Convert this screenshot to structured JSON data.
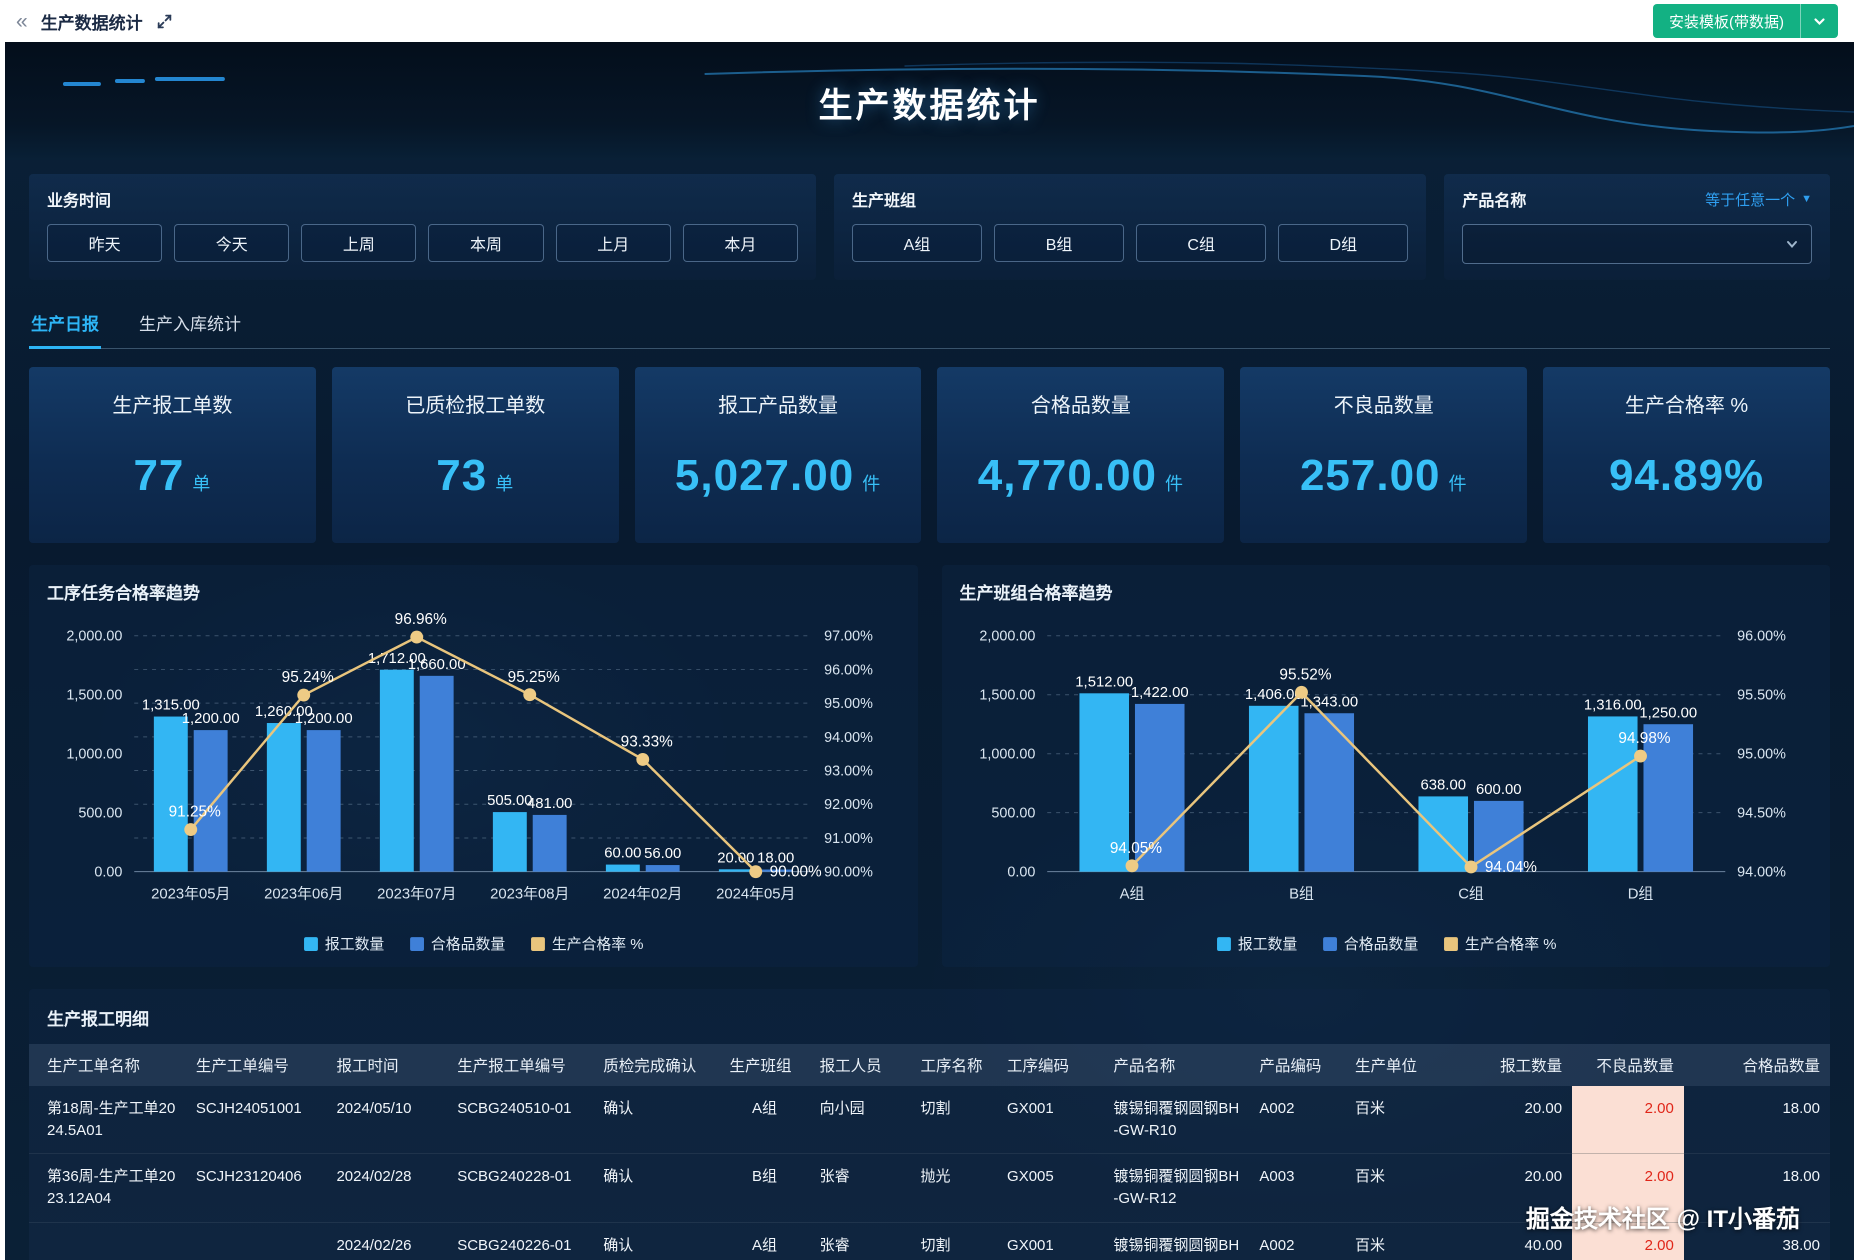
{
  "topbar": {
    "collapse_icon": "«",
    "title": "生产数据统计",
    "install_button": "安装模板(带数据)"
  },
  "banner": {
    "title": "生产数据统计"
  },
  "filters": {
    "time": {
      "label": "业务时间",
      "options": [
        "昨天",
        "今天",
        "上周",
        "本周",
        "上月",
        "本月"
      ]
    },
    "team": {
      "label": "生产班组",
      "options": [
        "A组",
        "B组",
        "C组",
        "D组"
      ]
    },
    "product": {
      "label": "产品名称",
      "operator": "等于任意一个"
    }
  },
  "tabs": [
    {
      "label": "生产日报",
      "active": true
    },
    {
      "label": "生产入库统计",
      "active": false
    }
  ],
  "kpis": [
    {
      "title": "生产报工单数",
      "value": "77",
      "unit": "单"
    },
    {
      "title": "已质检报工单数",
      "value": "73",
      "unit": "单"
    },
    {
      "title": "报工产品数量",
      "value": "5,027.00",
      "unit": "件"
    },
    {
      "title": "合格品数量",
      "value": "4,770.00",
      "unit": "件"
    },
    {
      "title": "不良品数量",
      "value": "257.00",
      "unit": "件"
    },
    {
      "title": "生产合格率 %",
      "value": "94.89%",
      "unit": ""
    }
  ],
  "chart_data": [
    {
      "type": "bar+line",
      "title": "工序任务合格率趋势",
      "categories": [
        "2023年05月",
        "2023年06月",
        "2023年07月",
        "2023年08月",
        "2024年02月",
        "2024年05月"
      ],
      "series": [
        {
          "name": "报工数量",
          "type": "bar",
          "color": "#33b6f3",
          "values": [
            1315,
            1260,
            1712,
            505,
            60,
            20
          ]
        },
        {
          "name": "合格品数量",
          "type": "bar",
          "color": "#3f80d8",
          "values": [
            1200,
            1200,
            1660,
            481,
            56,
            18
          ]
        },
        {
          "name": "生产合格率 %",
          "type": "line",
          "color": "#e9c57d",
          "values": [
            91.25,
            95.24,
            96.96,
            95.25,
            93.33,
            90.0
          ]
        }
      ],
      "bar_labels": [
        [
          "1,315.00",
          "1,260.00",
          "1,712.00",
          "505.00",
          "60.00",
          "20.00"
        ],
        [
          "1,200.00",
          "1,200.00",
          "1,660.00",
          "481.00",
          "56.00",
          "18.00"
        ]
      ],
      "line_labels": [
        "91.25%",
        "95.24%",
        "96.96%",
        "95.25%",
        "93.33%",
        "90.00%"
      ],
      "left_axis": {
        "min": 0,
        "max": 2000,
        "tick_labels": [
          "0.00",
          "500.00",
          "1,000.00",
          "1,500.00",
          "2,000.00"
        ]
      },
      "right_axis": {
        "min": 90,
        "max": 97,
        "tick_labels": [
          "90.00%",
          "91.00%",
          "92.00%",
          "93.00%",
          "94.00%",
          "95.00%",
          "96.00%",
          "97.00%"
        ]
      },
      "legend": [
        "报工数量",
        "合格品数量",
        "生产合格率 %"
      ],
      "grid": true,
      "legend_position": "bottom"
    },
    {
      "type": "bar+line",
      "title": "生产班组合格率趋势",
      "categories": [
        "A组",
        "B组",
        "C组",
        "D组"
      ],
      "series": [
        {
          "name": "报工数量",
          "type": "bar",
          "color": "#33b6f3",
          "values": [
            1512,
            1406,
            638,
            1316
          ]
        },
        {
          "name": "合格品数量",
          "type": "bar",
          "color": "#3f80d8",
          "values": [
            1422,
            1343,
            600,
            1250
          ]
        },
        {
          "name": "生产合格率 %",
          "type": "line",
          "color": "#e9c57d",
          "values": [
            94.05,
            95.52,
            94.04,
            94.98
          ]
        }
      ],
      "bar_labels": [
        [
          "1,512.00",
          "1,406.00",
          "638.00",
          "1,316.00"
        ],
        [
          "1,422.00",
          "1,343.00",
          "600.00",
          "1,250.00"
        ]
      ],
      "line_labels": [
        "94.05%",
        "95.52%",
        "94.04%",
        "94.98%"
      ],
      "left_axis": {
        "min": 0,
        "max": 2000,
        "tick_labels": [
          "0.00",
          "500.00",
          "1,000.00",
          "1,500.00",
          "2,000.00"
        ]
      },
      "right_axis": {
        "min": 94,
        "max": 96,
        "tick_labels": [
          "94.00%",
          "94.50%",
          "95.00%",
          "95.50%",
          "96.00%"
        ]
      },
      "legend": [
        "报工数量",
        "合格品数量",
        "生产合格率 %"
      ],
      "grid": true,
      "legend_position": "bottom"
    }
  ],
  "table": {
    "title": "生产报工明细",
    "columns": [
      "生产工单名称",
      "生产工单编号",
      "报工时间",
      "生产报工单编号",
      "质检完成确认",
      "生产班组",
      "报工人员",
      "工序名称",
      "工序编码",
      "产品名称",
      "产品编码",
      "生产单位",
      "报工数量",
      "不良品数量",
      "合格品数量"
    ],
    "rows": [
      [
        "第18周-生产工单2024.5A01",
        "SCJH24051001",
        "2024/05/10",
        "SCBG240510-01",
        "确认",
        "A组",
        "向小园",
        "切割",
        "GX001",
        "镀锡铜覆钢圆钢BH-GW-R10",
        "A002",
        "百米",
        "20.00",
        "2.00",
        "18.00"
      ],
      [
        "第36周-生产工单2023.12A04",
        "SCJH23120406",
        "2024/02/28",
        "SCBG240228-01",
        "确认",
        "B组",
        "张睿",
        "抛光",
        "GX005",
        "镀锡铜覆钢圆钢BH-GW-R12",
        "A003",
        "百米",
        "20.00",
        "2.00",
        "18.00"
      ],
      [
        "",
        "",
        "2024/02/26",
        "SCBG240226-01",
        "确认",
        "A组",
        "张睿",
        "切割",
        "GX001",
        "镀锡铜覆钢圆钢BH-GW-R10",
        "A002",
        "百米",
        "40.00",
        "2.00",
        "38.00"
      ],
      [
        "",
        "",
        "",
        "",
        "",
        "",
        "",
        "",
        "",
        "",
        "",
        "",
        "",
        "",
        ""
      ]
    ]
  },
  "watermark": "掘金技术社区 @ IT小番茄",
  "colors": {
    "accent_cyan": "#2db5f6",
    "kpi_value": "#38c0f7",
    "button_green": "#13b183",
    "bar_primary": "#33b6f3",
    "bar_secondary": "#3f80d8",
    "line_rate": "#e9c57d",
    "defect_cell_bg": "#fbdfd4",
    "defect_cell_text": "#e02619",
    "page_bg": "#081a2f"
  }
}
